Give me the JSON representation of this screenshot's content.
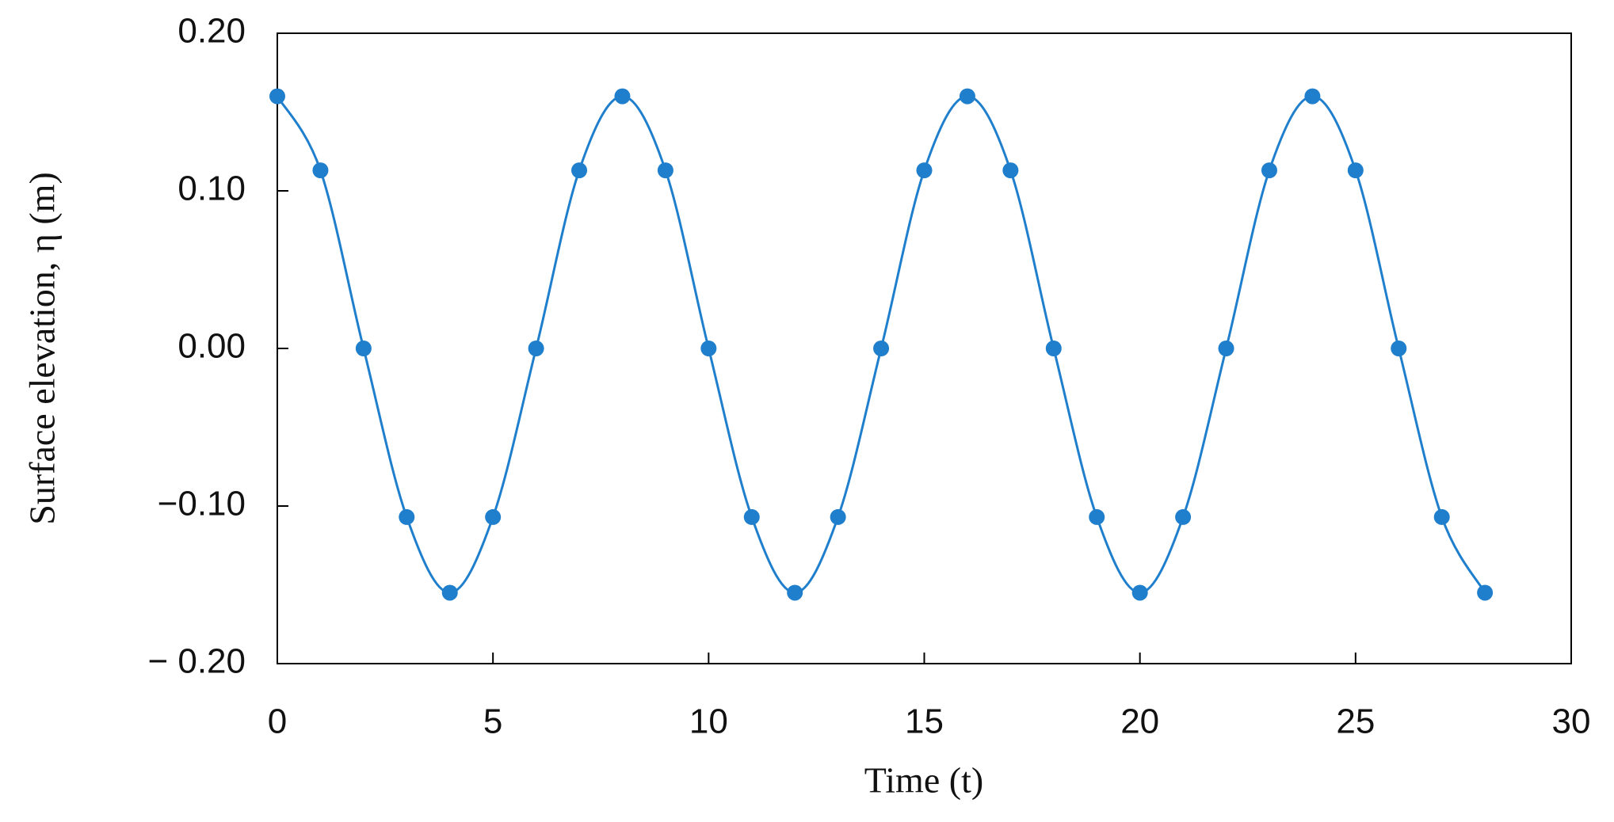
{
  "chart_data": {
    "type": "line",
    "x_label": "Time (t)",
    "y_label": "Surface elevation, η (m)",
    "x": [
      0,
      1,
      2,
      3,
      4,
      5,
      6,
      7,
      8,
      9,
      10,
      11,
      12,
      13,
      14,
      15,
      16,
      17,
      18,
      19,
      20,
      21,
      22,
      23,
      24,
      25,
      26,
      27,
      28
    ],
    "series": [
      {
        "color": "#1f7fcc",
        "values": [
          0.16,
          0.113,
          0,
          -0.107,
          -0.155,
          -0.107,
          0,
          0.113,
          0.16,
          0.113,
          0,
          -0.107,
          -0.155,
          -0.107,
          0,
          0.113,
          0.16,
          0.113,
          0,
          -0.107,
          -0.155,
          -0.107,
          0,
          0.113,
          0.16,
          0.113,
          0,
          -0.107,
          -0.155
        ]
      }
    ],
    "xlim": [
      0,
      30
    ],
    "xticks": [
      0,
      5,
      10,
      15,
      20,
      25,
      30
    ],
    "ylim": [
      -0.2,
      0.2
    ],
    "yticks": [
      {
        "value": -0.2,
        "label": "− 0.20"
      },
      {
        "value": -0.1,
        "label": "−0.10"
      },
      {
        "value": 0,
        "label": "0.00"
      },
      {
        "value": 0.1,
        "label": "0.10"
      },
      {
        "value": 0.2,
        "label": "0.20"
      }
    ],
    "grid": false,
    "markers": true
  }
}
